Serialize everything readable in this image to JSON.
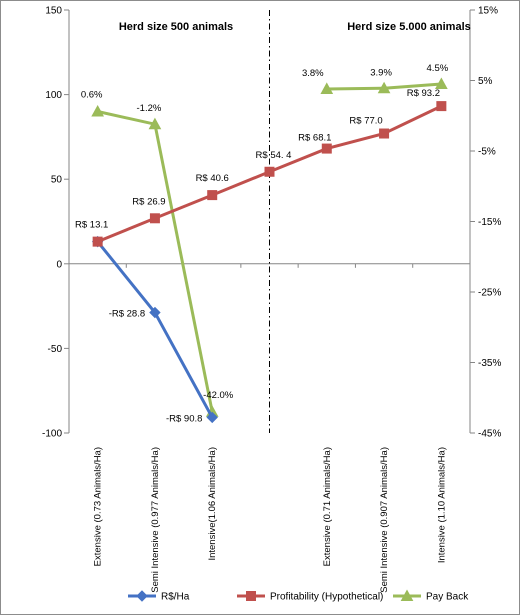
{
  "chart_data": {
    "type": "line",
    "categories": [
      "Extensive (0.73 Animals/Ha)",
      "Semi Intensive (0.977 Animals/Ha)",
      "Intensive(1.06 Animals/Ha)",
      "",
      "Extensive (0.71 Animals/Ha)",
      "Semi Intensive (0.907 Animals/Ha)",
      "Intensive (1.10 Animals/Ha)"
    ],
    "y_left": {
      "ylim": [
        -100,
        150
      ],
      "ticks": [
        150,
        100,
        50,
        0,
        -50,
        -100
      ]
    },
    "y_right": {
      "ylim": [
        -45,
        15
      ],
      "ticks": [
        "15%",
        "5%",
        "-5%",
        "-15%",
        "-25%",
        "-35%",
        "-45%"
      ],
      "tick_values": [
        15,
        5,
        -5,
        -15,
        -25,
        -35,
        -45
      ]
    },
    "annotations": [
      "Herd size  500 animals",
      "Herd size 5.000 animals"
    ],
    "divider_category_index": 3,
    "series": [
      {
        "name": "R$/Ha",
        "axis": "left",
        "color": "#4472c4",
        "marker": "diamond",
        "values": [
          13.1,
          -28.8,
          -90.8,
          null,
          null,
          null,
          null
        ],
        "labels": [
          "",
          "-R$ 28.8",
          "-R$ 90.8",
          "",
          "",
          "",
          ""
        ]
      },
      {
        "name": "Profitability (Hypothetical)",
        "axis": "left",
        "color": "#c0504d",
        "marker": "square",
        "values": [
          13.1,
          26.9,
          40.6,
          54.4,
          68.1,
          77.0,
          93.2
        ],
        "labels": [
          "R$ 13.1",
          "R$ 26.9",
          "R$ 40.6",
          "R$ 54. 4",
          "R$ 68.1",
          "R$ 77.0",
          "R$ 93.2"
        ]
      },
      {
        "name": "Pay Back",
        "axis": "right",
        "color": "#9bbb59",
        "marker": "triangle",
        "values": [
          0.6,
          -1.2,
          -42.0,
          null,
          3.8,
          3.9,
          4.5
        ],
        "labels": [
          "0.6%",
          "-1.2%",
          "-42.0%",
          "",
          "3.8%",
          "3.9%",
          "4.5%"
        ]
      }
    ],
    "legend": {
      "position": "bottom"
    },
    "grid": false
  }
}
